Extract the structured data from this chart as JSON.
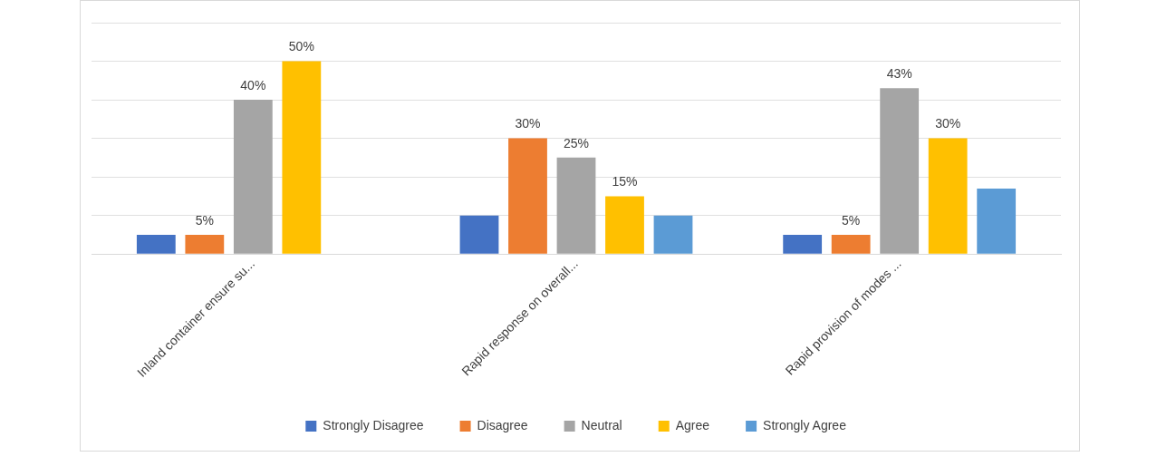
{
  "chart_data": {
    "type": "bar",
    "categories": [
      "Inland container ensure su...",
      "Rapid response on overall...",
      "Rapid provision of modes ..."
    ],
    "series": [
      {
        "name": "Strongly Disagree",
        "color": "#4472c4",
        "values": [
          5,
          10,
          5
        ],
        "value_labels": [
          null,
          null,
          null
        ]
      },
      {
        "name": "Disagree",
        "color": "#ed7d31",
        "values": [
          5,
          30,
          5
        ],
        "value_labels": [
          "5%",
          "30%",
          "5%"
        ]
      },
      {
        "name": "Neutral",
        "color": "#a5a5a5",
        "values": [
          40,
          25,
          43
        ],
        "value_labels": [
          "40%",
          "25%",
          "43%"
        ]
      },
      {
        "name": "Agree",
        "color": "#ffc000",
        "values": [
          50,
          15,
          30
        ],
        "value_labels": [
          "50%",
          "15%",
          "30%"
        ]
      },
      {
        "name": "Strongly Agree",
        "color": "#5b9bd5",
        "values": [
          null,
          10,
          17
        ],
        "value_labels": [
          null,
          null,
          null
        ]
      }
    ],
    "ylim": [
      0,
      60
    ],
    "yticks": [
      {
        "value": 0,
        "label": null
      },
      {
        "value": 10,
        "label": null
      },
      {
        "value": 20,
        "label": null
      },
      {
        "value": 30,
        "label": null
      },
      {
        "value": 40,
        "label": null
      },
      {
        "value": 50,
        "label": null
      },
      {
        "value": 60,
        "label": null
      }
    ],
    "tick_labels": "x",
    "grid": "y",
    "legend": "bottom"
  }
}
